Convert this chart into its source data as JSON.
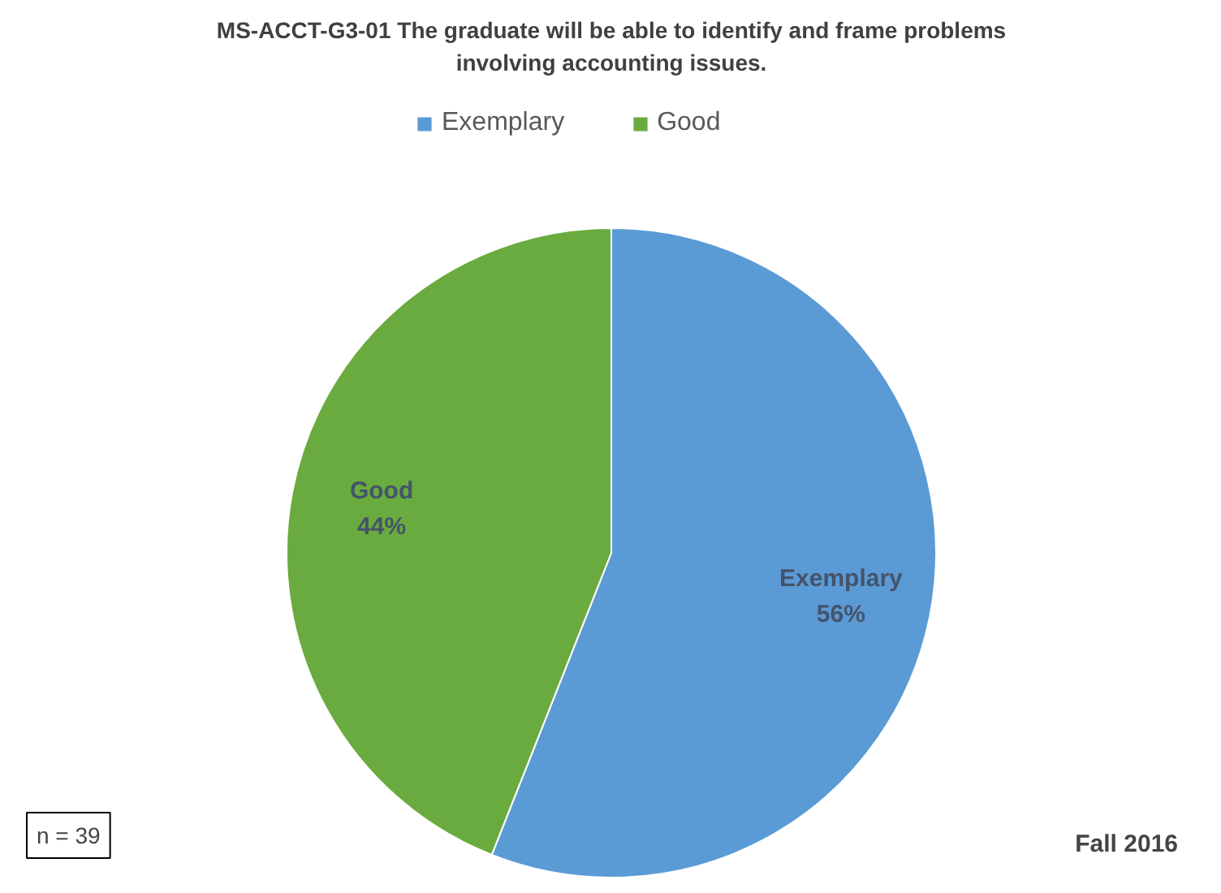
{
  "chart_data": {
    "type": "pie",
    "title": "MS-ACCT-G3-01 The graduate will be able to identify and frame problems involving accounting issues.",
    "categories": [
      "Exemplary",
      "Good"
    ],
    "values": [
      56,
      44
    ],
    "colors": [
      "#5b9bd5",
      "#6aab3f"
    ],
    "value_labels": [
      "56%",
      "44%"
    ],
    "legend": "top",
    "annotations": [
      "n = 39",
      "Fall 2016"
    ]
  }
}
